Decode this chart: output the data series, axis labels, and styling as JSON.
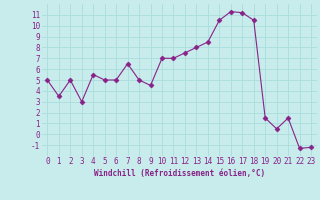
{
  "x": [
    0,
    1,
    2,
    3,
    4,
    5,
    6,
    7,
    8,
    9,
    10,
    11,
    12,
    13,
    14,
    15,
    16,
    17,
    18,
    19,
    20,
    21,
    22,
    23
  ],
  "y": [
    5.0,
    3.5,
    5.0,
    3.0,
    5.5,
    5.0,
    5.0,
    6.5,
    5.0,
    4.5,
    7.0,
    7.0,
    7.5,
    8.0,
    8.5,
    10.5,
    11.3,
    11.2,
    10.5,
    1.5,
    0.5,
    1.5,
    -1.3,
    -1.2
  ],
  "xlabel": "Windchill (Refroidissement éolien,°C)",
  "ylim": [
    -2,
    12
  ],
  "xlim": [
    -0.5,
    23.5
  ],
  "yticks": [
    -1,
    0,
    1,
    2,
    3,
    4,
    5,
    6,
    7,
    8,
    9,
    10,
    11
  ],
  "xticks": [
    0,
    1,
    2,
    3,
    4,
    5,
    6,
    7,
    8,
    9,
    10,
    11,
    12,
    13,
    14,
    15,
    16,
    17,
    18,
    19,
    20,
    21,
    22,
    23
  ],
  "line_color": "#882288",
  "marker": "D",
  "marker_size": 2.5,
  "bg_color": "#c8ecec",
  "grid_color": "#aadddd",
  "axis_label_color": "#882288",
  "tick_label_color": "#882288",
  "xlabel_fontsize": 5.5,
  "tick_fontsize": 5.5
}
